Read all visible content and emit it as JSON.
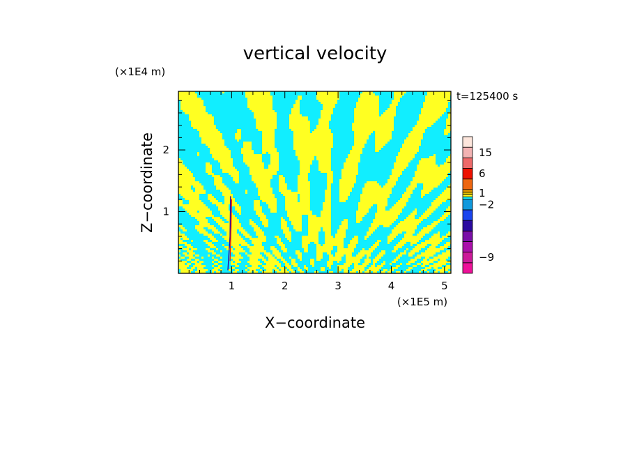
{
  "chart_data": {
    "type": "heatmap",
    "title": "vertical velocity",
    "xlabel": "X−coordinate",
    "ylabel": "Z−coordinate",
    "x_unit": "(×1E5 m)",
    "y_unit": "(×1E4 m)",
    "time_label": "t=125400 s",
    "xlim": [
      0,
      5.12
    ],
    "ylim": [
      0,
      2.95
    ],
    "x_ticks": [
      "1",
      "2",
      "3",
      "4",
      "5"
    ],
    "y_ticks": [
      "1",
      "2"
    ],
    "colorbar": {
      "tick_labels": [
        "15",
        "6",
        "1",
        "−2",
        "−9"
      ],
      "levels": [
        {
          "color": "#ee1199",
          "value": -11
        },
        {
          "color": "#cc1a99",
          "value": -9
        },
        {
          "color": "#aa10aa",
          "value": -7
        },
        {
          "color": "#7a0fa8",
          "value": -5
        },
        {
          "color": "#2b0aa0",
          "value": -4
        },
        {
          "color": "#1a44ee",
          "value": -3
        },
        {
          "color": "#1199dd",
          "value": -2
        },
        {
          "color": "#11eeff",
          "value": -1
        },
        {
          "color": "#ffff22",
          "value": 0
        },
        {
          "color": "#e8c000",
          "value": 1
        },
        {
          "color": "#f0a000",
          "value": 2
        },
        {
          "color": "#ee6611",
          "value": 4
        },
        {
          "color": "#ee1100",
          "value": 6
        },
        {
          "color": "#ee6a6a",
          "value": 10
        },
        {
          "color": "#f3b3b3",
          "value": 15
        },
        {
          "color": "#fde6dc",
          "value": 20
        }
      ]
    },
    "field_colors": {
      "positive": "#ffff22",
      "negative": "#11eeff"
    }
  }
}
